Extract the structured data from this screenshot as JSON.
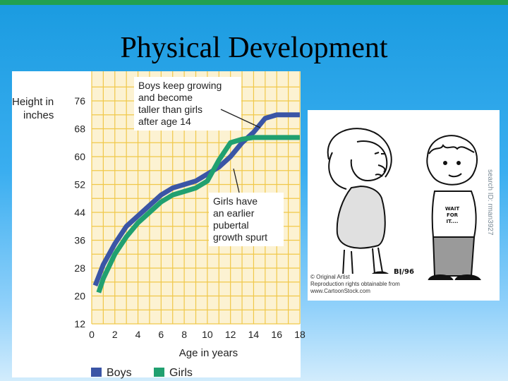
{
  "slide": {
    "title": "Physical Development"
  },
  "chart_data": {
    "type": "line",
    "ylabel": "Height in inches",
    "xlabel": "Age in years",
    "xlim": [
      0,
      18
    ],
    "ylim": [
      12,
      76
    ],
    "xticks": [
      "0",
      "2",
      "4",
      "6",
      "8",
      "10",
      "12",
      "14",
      "16",
      "18"
    ],
    "yticks": [
      "12",
      "20",
      "28",
      "36",
      "44",
      "52",
      "60",
      "68",
      "76"
    ],
    "grid": true,
    "legend_position": "bottom",
    "series": [
      {
        "name": "Boys",
        "color": "#3a55a6",
        "x": [
          0.3,
          1,
          2,
          3,
          4,
          5,
          6,
          7,
          8,
          9,
          10,
          11,
          12,
          13,
          14,
          15,
          16,
          17,
          18
        ],
        "y": [
          23,
          29,
          35,
          40,
          43,
          46,
          49,
          51,
          52,
          53,
          55,
          57,
          60,
          64,
          67,
          71,
          72,
          72,
          72
        ]
      },
      {
        "name": "Girls",
        "color": "#20a070",
        "x": [
          0.6,
          1,
          2,
          3,
          4,
          5,
          6,
          7,
          8,
          9,
          10,
          11,
          12,
          13,
          14,
          15,
          16,
          17,
          18
        ],
        "y": [
          21,
          25,
          32,
          37,
          41,
          44,
          47,
          49,
          50,
          51,
          53,
          59,
          64,
          65,
          65.5,
          65.5,
          65.5,
          65.5,
          65.5
        ]
      }
    ],
    "annotations": [
      {
        "lines": [
          "Boys keep growing",
          "and become",
          "taller than girls",
          "after age 14"
        ]
      },
      {
        "lines": [
          "Girls have",
          "an earlier",
          "pubertal",
          "growth spurt"
        ]
      }
    ]
  },
  "cartoon": {
    "shirt_text": [
      "WAIT",
      "FOR",
      "IT...."
    ],
    "signature": "BJ/96",
    "copyright": [
      "© Original Artist",
      "Reproduction rights obtainable from",
      "www.CartoonStock.com"
    ],
    "side_text": "search ID: rman3927"
  },
  "colors": {
    "chart_bg": "#fcf2d2",
    "grid": "#f0c84a",
    "frame_top": "#22a050"
  }
}
